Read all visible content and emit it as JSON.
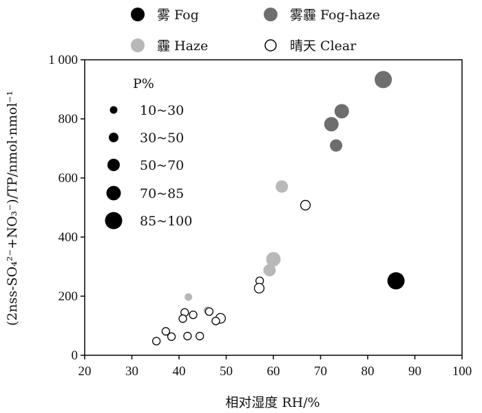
{
  "chart_data": {
    "type": "scatter",
    "xlabel": "相对湿度 RH/%",
    "ylabel": "(2nss-SO₄²⁻+NO₃⁻)/TP/nmol·nmol⁻¹",
    "xlim": [
      20,
      100
    ],
    "ylim": [
      0,
      1000
    ],
    "x_ticks": [
      "20",
      "30",
      "40",
      "50",
      "60",
      "70",
      "80",
      "90",
      "100"
    ],
    "y_ticks": [
      "0",
      "200",
      "400",
      "600",
      "800",
      "1 000"
    ],
    "grid": false,
    "legend_placement": "top",
    "series": [
      {
        "name": "雾 Fog",
        "color": "#000000",
        "marker": "filled",
        "points": [
          {
            "x": 86,
            "y": 252,
            "p": "85~100"
          }
        ]
      },
      {
        "name": "雾霾 Fog-haze",
        "color": "#6e6e6e",
        "marker": "filled",
        "points": [
          {
            "x": 83.3,
            "y": 933,
            "p": "85~100"
          },
          {
            "x": 74.5,
            "y": 826,
            "p": "70~85"
          },
          {
            "x": 72.3,
            "y": 782,
            "p": "70~85"
          },
          {
            "x": 73.3,
            "y": 710,
            "p": "50~70"
          }
        ]
      },
      {
        "name": "霾 Haze",
        "color": "#b8b8b8",
        "marker": "filled",
        "points": [
          {
            "x": 61.8,
            "y": 571,
            "p": "50~70"
          },
          {
            "x": 60.0,
            "y": 325,
            "p": "70~85"
          },
          {
            "x": 59.2,
            "y": 288,
            "p": "50~70"
          },
          {
            "x": 42.0,
            "y": 197,
            "p": "10~30"
          },
          {
            "x": 46.0,
            "y": 152,
            "p": "10~30"
          }
        ]
      },
      {
        "name": "晴天 Clear",
        "color": "#000000",
        "marker": "hollow",
        "points": [
          {
            "x": 66.8,
            "y": 508,
            "p": "30~50"
          },
          {
            "x": 57.1,
            "y": 252,
            "p": "10~30"
          },
          {
            "x": 57.0,
            "y": 227,
            "p": "30~50"
          },
          {
            "x": 41.2,
            "y": 145,
            "p": "10~30"
          },
          {
            "x": 43.0,
            "y": 137,
            "p": "10~30"
          },
          {
            "x": 46.4,
            "y": 148,
            "p": "10~30"
          },
          {
            "x": 40.8,
            "y": 124,
            "p": "10~30"
          },
          {
            "x": 48.8,
            "y": 125,
            "p": "30~50"
          },
          {
            "x": 47.8,
            "y": 116,
            "p": "10~30"
          },
          {
            "x": 37.2,
            "y": 81,
            "p": "10~30"
          },
          {
            "x": 38.4,
            "y": 63,
            "p": "10~30"
          },
          {
            "x": 41.8,
            "y": 65,
            "p": "10~30"
          },
          {
            "x": 44.4,
            "y": 65,
            "p": "10~30"
          },
          {
            "x": 35.2,
            "y": 48,
            "p": "10~30"
          }
        ]
      }
    ],
    "size_legend": {
      "title": "P%",
      "classes": [
        "10~30",
        "30~50",
        "50~70",
        "70~85",
        "85~100"
      ]
    }
  }
}
